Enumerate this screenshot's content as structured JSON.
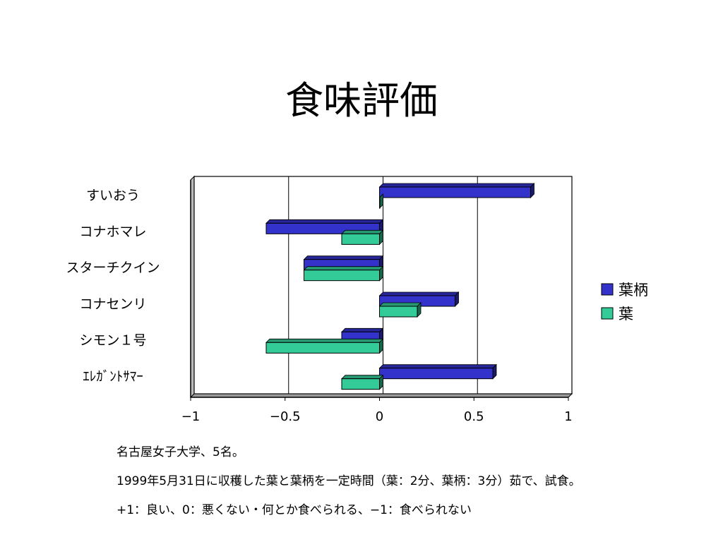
{
  "slide": {
    "title": "食味評価",
    "notes": [
      "名古屋女子大学、5名。",
      "1999年5月31日に収穫した葉と葉柄を一定時間（葉：2分、葉柄：3分）茹で、試食。",
      "+1：良い、0：悪くない・何とか食べられる、−1：食べられない"
    ]
  },
  "chart_data": {
    "type": "bar",
    "orientation": "horizontal",
    "categories": [
      "すいおう",
      "コナホマレ",
      "スターチクイン",
      "コナセンリ",
      "シモン１号",
      "ｴﾚｶﾞﾝﾄｻﾏｰ"
    ],
    "series": [
      {
        "name": "葉柄",
        "color": "#3333cc",
        "values": [
          0.8,
          -0.6,
          -0.4,
          0.4,
          -0.2,
          0.6
        ]
      },
      {
        "name": "葉",
        "color": "#33cc99",
        "values": [
          0.0,
          -0.2,
          -0.4,
          0.2,
          -0.6,
          -0.2
        ]
      }
    ],
    "xlim": [
      -1,
      1
    ],
    "xticks": [
      -1,
      -0.5,
      0,
      0.5,
      1
    ],
    "xtick_labels": [
      "−1",
      "−0.5",
      "0",
      "0.5",
      "1"
    ],
    "grid": "vertical",
    "legend": "right"
  }
}
